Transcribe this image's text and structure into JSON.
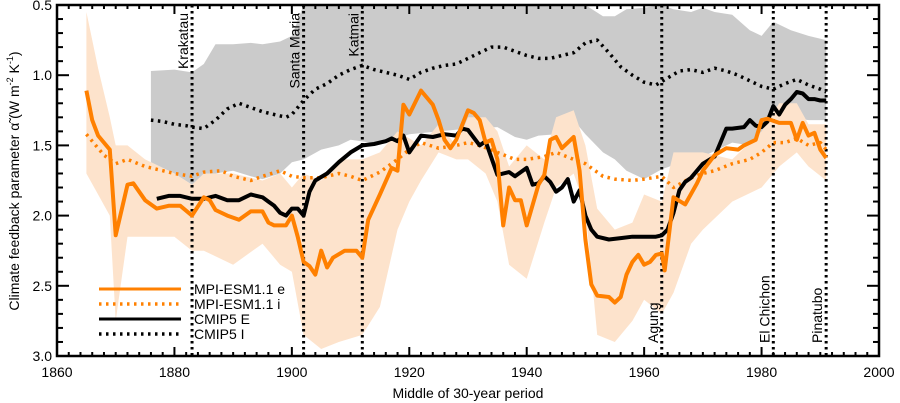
{
  "chart_data": {
    "type": "line",
    "title": "",
    "xlabel": "Middle of 30-year period",
    "ylabel": "Climate feedback parameter α̃ (W m⁻² K⁻¹)",
    "ylabel_parts": {
      "main": "Climate feedback parameter ",
      "symbol": "α̃",
      "units_open": " (W m",
      "sup1": "-2",
      "units_mid": " K",
      "sup2": "-1",
      "units_close": ")"
    },
    "xlim": [
      1860,
      2000
    ],
    "ylim": [
      0.5,
      3.0
    ],
    "y_inverted": true,
    "grid": false,
    "xticks": [
      1860,
      1880,
      1900,
      1920,
      1940,
      1960,
      1980,
      2000
    ],
    "xtick_labels": [
      "1860",
      "1880",
      "1900",
      "1920",
      "1940",
      "1960",
      "1980",
      "2000"
    ],
    "yticks": [
      0.5,
      1.0,
      1.5,
      2.0,
      2.5,
      3.0
    ],
    "ytick_labels": [
      "0.5",
      "1.0",
      "1.5",
      "2.0",
      "2.5",
      "3.0"
    ],
    "legend_position": "bottom-left",
    "legend": [
      {
        "label": "MPI-ESM1.1 e",
        "color": "#ff7f0e",
        "style": "solid"
      },
      {
        "label": "MPI-ESM1.1 i",
        "color": "#ff7f0e",
        "style": "dotted"
      },
      {
        "label": "CMIP5 E",
        "color": "#000000",
        "style": "solid"
      },
      {
        "label": "CMIP5 I",
        "color": "#000000",
        "style": "dotted"
      }
    ],
    "colors": {
      "mpi": "#ff8000",
      "mpi_band": "#fde3cc",
      "cmip_band": "#cbcbcb",
      "cmip": "#000000"
    },
    "volcanoes": [
      {
        "name": "Krakatau",
        "year": 1883,
        "label_pos": "top"
      },
      {
        "name": "Santa Maria",
        "year": 1902,
        "label_pos": "top"
      },
      {
        "name": "Katmai",
        "year": 1912,
        "label_pos": "top"
      },
      {
        "name": "Agung",
        "year": 1963,
        "label_pos": "bottom"
      },
      {
        "name": "El Chichon",
        "year": 1982,
        "label_pos": "bottom"
      },
      {
        "name": "Pinatubo",
        "year": 1991,
        "label_pos": "bottom"
      }
    ],
    "series": [
      {
        "name": "MPI-ESM1.1 e",
        "style": "solid",
        "color": "#ff8000",
        "x": [
          1865,
          1866,
          1867,
          1869,
          1870,
          1872,
          1873,
          1875,
          1877,
          1879,
          1881,
          1883,
          1885,
          1886,
          1887,
          1889,
          1891,
          1893,
          1895,
          1896,
          1897,
          1899,
          1900,
          1901,
          1902,
          1903,
          1904,
          1905,
          1906,
          1907,
          1909,
          1911,
          1912,
          1913,
          1915,
          1917,
          1918,
          1919,
          1920,
          1922,
          1924,
          1925,
          1926,
          1927,
          1928,
          1930,
          1931,
          1932,
          1933,
          1934,
          1935,
          1936,
          1937,
          1938,
          1939,
          1940,
          1942,
          1943,
          1944,
          1945,
          1946,
          1947,
          1948,
          1949,
          1950,
          1951,
          1952,
          1954,
          1955,
          1956,
          1957,
          1958,
          1959,
          1960,
          1961,
          1962,
          1963,
          1963.5,
          1965,
          1967,
          1969,
          1970,
          1972,
          1974,
          1976,
          1977,
          1979,
          1980,
          1981,
          1983,
          1985,
          1986,
          1987,
          1988,
          1989,
          1990,
          1991
        ],
        "y": [
          1.11,
          1.32,
          1.43,
          1.53,
          2.14,
          1.78,
          1.77,
          1.89,
          1.95,
          1.93,
          1.93,
          2.0,
          1.87,
          1.89,
          1.96,
          2.0,
          2.03,
          1.97,
          1.97,
          2.05,
          2.07,
          2.07,
          2.0,
          2.15,
          2.33,
          2.36,
          2.42,
          2.25,
          2.37,
          2.3,
          2.25,
          2.25,
          2.3,
          2.03,
          1.85,
          1.66,
          1.68,
          1.21,
          1.28,
          1.11,
          1.21,
          1.32,
          1.46,
          1.52,
          1.46,
          1.25,
          1.27,
          1.32,
          1.48,
          1.46,
          1.6,
          2.07,
          1.8,
          1.89,
          1.89,
          2.07,
          1.78,
          1.71,
          1.46,
          1.44,
          1.52,
          1.48,
          1.44,
          1.68,
          2.17,
          2.49,
          2.57,
          2.58,
          2.62,
          2.58,
          2.42,
          2.33,
          2.28,
          2.35,
          2.33,
          2.28,
          2.27,
          2.39,
          1.87,
          1.92,
          1.77,
          1.68,
          1.57,
          1.52,
          1.53,
          1.5,
          1.46,
          1.32,
          1.31,
          1.34,
          1.34,
          1.46,
          1.34,
          1.43,
          1.41,
          1.53,
          1.59
        ]
      },
      {
        "name": "MPI-ESM1.1 e range",
        "style": "band",
        "color": "#fde3cc",
        "x": [
          1865,
          1867,
          1869,
          1870,
          1872,
          1875,
          1880,
          1883,
          1885,
          1890,
          1895,
          1898,
          1900,
          1902,
          1905,
          1908,
          1912,
          1915,
          1918,
          1920,
          1922,
          1925,
          1928,
          1930,
          1933,
          1935,
          1937,
          1940,
          1943,
          1945,
          1948,
          1950,
          1952,
          1955,
          1958,
          1960,
          1963,
          1965,
          1968,
          1970,
          1975,
          1980,
          1983,
          1986,
          1988,
          1991
        ],
        "upper": [
          0.55,
          0.95,
          1.3,
          1.5,
          1.5,
          1.6,
          1.7,
          1.78,
          1.7,
          1.7,
          1.75,
          1.7,
          1.8,
          1.7,
          1.75,
          1.6,
          1.6,
          1.55,
          1.4,
          1.45,
          1.5,
          1.35,
          1.5,
          1.3,
          1.3,
          1.4,
          1.65,
          1.5,
          1.6,
          1.3,
          1.25,
          1.5,
          1.95,
          2.1,
          2.05,
          1.85,
          1.9,
          1.55,
          1.55,
          1.55,
          1.6,
          1.4,
          1.2,
          1.2,
          1.35,
          1.35
        ],
        "lower": [
          1.7,
          1.85,
          2.0,
          2.75,
          2.15,
          2.15,
          2.15,
          2.25,
          2.25,
          2.35,
          2.2,
          2.35,
          2.4,
          2.85,
          2.95,
          2.9,
          2.85,
          2.65,
          2.1,
          1.9,
          1.75,
          1.55,
          1.6,
          1.6,
          1.7,
          1.9,
          2.35,
          2.45,
          2.05,
          1.8,
          1.7,
          1.95,
          2.85,
          2.9,
          2.75,
          2.6,
          2.7,
          2.55,
          2.2,
          2.1,
          1.9,
          1.8,
          1.65,
          1.55,
          1.65,
          1.75
        ]
      },
      {
        "name": "MPI-ESM1.1 i",
        "style": "dotted",
        "color": "#ff8000",
        "x": [
          1865,
          1867,
          1868,
          1870,
          1872,
          1875,
          1878,
          1880,
          1883,
          1885,
          1888,
          1890,
          1893,
          1895,
          1898,
          1900,
          1902,
          1905,
          1908,
          1910,
          1912,
          1915,
          1918,
          1920,
          1922,
          1925,
          1928,
          1930,
          1932,
          1935,
          1938,
          1940,
          1943,
          1945,
          1948,
          1950,
          1953,
          1955,
          1958,
          1960,
          1963,
          1965,
          1968,
          1970,
          1972,
          1975,
          1978,
          1980,
          1982,
          1984,
          1986,
          1988,
          1990,
          1991
        ],
        "y": [
          1.42,
          1.52,
          1.57,
          1.63,
          1.6,
          1.65,
          1.68,
          1.7,
          1.72,
          1.69,
          1.68,
          1.72,
          1.75,
          1.72,
          1.68,
          1.72,
          1.73,
          1.73,
          1.7,
          1.72,
          1.75,
          1.69,
          1.6,
          1.53,
          1.48,
          1.52,
          1.5,
          1.48,
          1.5,
          1.55,
          1.6,
          1.6,
          1.58,
          1.55,
          1.6,
          1.63,
          1.72,
          1.74,
          1.75,
          1.74,
          1.72,
          1.8,
          1.73,
          1.7,
          1.68,
          1.63,
          1.6,
          1.55,
          1.48,
          1.48,
          1.45,
          1.5,
          1.48,
          1.53
        ]
      },
      {
        "name": "CMIP5 E",
        "style": "solid",
        "color": "#000000",
        "x": [
          1877,
          1879,
          1881,
          1883,
          1885,
          1887,
          1889,
          1891,
          1893,
          1895,
          1896,
          1897,
          1898,
          1899,
          1900,
          1901,
          1902,
          1903,
          1904,
          1906,
          1908,
          1910,
          1912,
          1914,
          1916,
          1917,
          1918,
          1919,
          1920,
          1922,
          1924,
          1926,
          1928,
          1929,
          1930,
          1932,
          1933,
          1935,
          1937,
          1938,
          1940,
          1941,
          1942,
          1943,
          1944,
          1945,
          1946,
          1947,
          1948,
          1949,
          1950,
          1951,
          1952,
          1954,
          1956,
          1958,
          1960,
          1962,
          1963,
          1964,
          1965,
          1966,
          1967,
          1968,
          1970,
          1972,
          1974,
          1975,
          1977,
          1978,
          1979,
          1980,
          1981,
          1982,
          1983,
          1984,
          1985,
          1986,
          1987,
          1988,
          1989,
          1990,
          1991
        ],
        "y": [
          1.88,
          1.86,
          1.86,
          1.88,
          1.88,
          1.86,
          1.89,
          1.89,
          1.85,
          1.87,
          1.9,
          1.93,
          1.98,
          2.0,
          1.95,
          1.95,
          2.0,
          1.83,
          1.75,
          1.7,
          1.62,
          1.55,
          1.5,
          1.49,
          1.47,
          1.45,
          1.47,
          1.43,
          1.55,
          1.43,
          1.44,
          1.42,
          1.43,
          1.38,
          1.39,
          1.5,
          1.47,
          1.71,
          1.69,
          1.72,
          1.66,
          1.78,
          1.77,
          1.72,
          1.76,
          1.83,
          1.8,
          1.74,
          1.9,
          1.82,
          2.0,
          2.1,
          2.15,
          2.17,
          2.16,
          2.15,
          2.15,
          2.15,
          2.14,
          2.1,
          1.98,
          1.82,
          1.76,
          1.73,
          1.63,
          1.58,
          1.38,
          1.38,
          1.37,
          1.32,
          1.36,
          1.37,
          1.33,
          1.22,
          1.28,
          1.21,
          1.17,
          1.12,
          1.13,
          1.17,
          1.17,
          1.18,
          1.18
        ]
      },
      {
        "name": "CMIP5 E/I range",
        "style": "band",
        "color": "#cbcbcb",
        "x": [
          1876,
          1880,
          1883,
          1885,
          1887,
          1890,
          1893,
          1895,
          1898,
          1900,
          1902,
          1905,
          1908,
          1910,
          1915,
          1920,
          1925,
          1930,
          1935,
          1938,
          1940,
          1942,
          1945,
          1948,
          1950,
          1953,
          1955,
          1957,
          1960,
          1963,
          1965,
          1968,
          1970,
          1972,
          1975,
          1978,
          1980,
          1982,
          1985,
          1988,
          1991
        ],
        "upper": [
          0.97,
          0.96,
          0.98,
          0.92,
          0.78,
          0.78,
          0.77,
          0.78,
          0.76,
          0.72,
          0.5,
          0.5,
          0.5,
          0.5,
          0.5,
          0.5,
          0.5,
          0.5,
          0.5,
          0.5,
          0.5,
          0.5,
          0.5,
          0.5,
          0.5,
          0.58,
          0.58,
          0.53,
          0.52,
          0.5,
          0.53,
          0.55,
          0.52,
          0.55,
          0.57,
          0.68,
          0.72,
          0.62,
          0.68,
          0.72,
          0.75
        ],
        "lower": [
          1.62,
          1.7,
          1.78,
          1.78,
          1.7,
          1.68,
          1.72,
          1.74,
          1.7,
          1.62,
          1.6,
          1.53,
          1.5,
          1.46,
          1.49,
          1.42,
          1.4,
          1.38,
          1.37,
          1.44,
          1.46,
          1.43,
          1.42,
          1.32,
          1.42,
          1.55,
          1.6,
          1.68,
          1.74,
          1.67,
          1.64,
          1.58,
          1.58,
          1.54,
          1.48,
          1.5,
          1.47,
          1.45,
          1.3,
          1.32,
          1.32
        ]
      },
      {
        "name": "CMIP5 I",
        "style": "dotted",
        "color": "#000000",
        "x": [
          1876,
          1878,
          1880,
          1882,
          1883,
          1885,
          1887,
          1889,
          1891,
          1893,
          1895,
          1897,
          1899,
          1900,
          1902,
          1904,
          1906,
          1908,
          1910,
          1912,
          1914,
          1916,
          1918,
          1920,
          1922,
          1924,
          1926,
          1928,
          1930,
          1932,
          1934,
          1936,
          1938,
          1940,
          1942,
          1944,
          1946,
          1948,
          1950,
          1952,
          1954,
          1956,
          1958,
          1960,
          1962,
          1964,
          1966,
          1968,
          1970,
          1972,
          1974,
          1976,
          1978,
          1980,
          1982,
          1984,
          1986,
          1988,
          1990,
          1991
        ],
        "y": [
          1.32,
          1.33,
          1.35,
          1.36,
          1.37,
          1.38,
          1.32,
          1.24,
          1.2,
          1.23,
          1.26,
          1.28,
          1.3,
          1.28,
          1.18,
          1.1,
          1.06,
          1.0,
          0.96,
          0.93,
          0.96,
          0.98,
          1.0,
          1.03,
          0.98,
          0.95,
          0.93,
          0.92,
          0.88,
          0.84,
          0.8,
          0.8,
          0.83,
          0.86,
          0.88,
          0.88,
          0.86,
          0.84,
          0.77,
          0.75,
          0.84,
          0.94,
          1.0,
          1.05,
          1.07,
          1.02,
          0.97,
          0.96,
          0.98,
          0.95,
          0.97,
          1.0,
          1.04,
          1.08,
          1.1,
          1.06,
          1.03,
          1.07,
          1.1,
          1.12
        ]
      }
    ]
  }
}
